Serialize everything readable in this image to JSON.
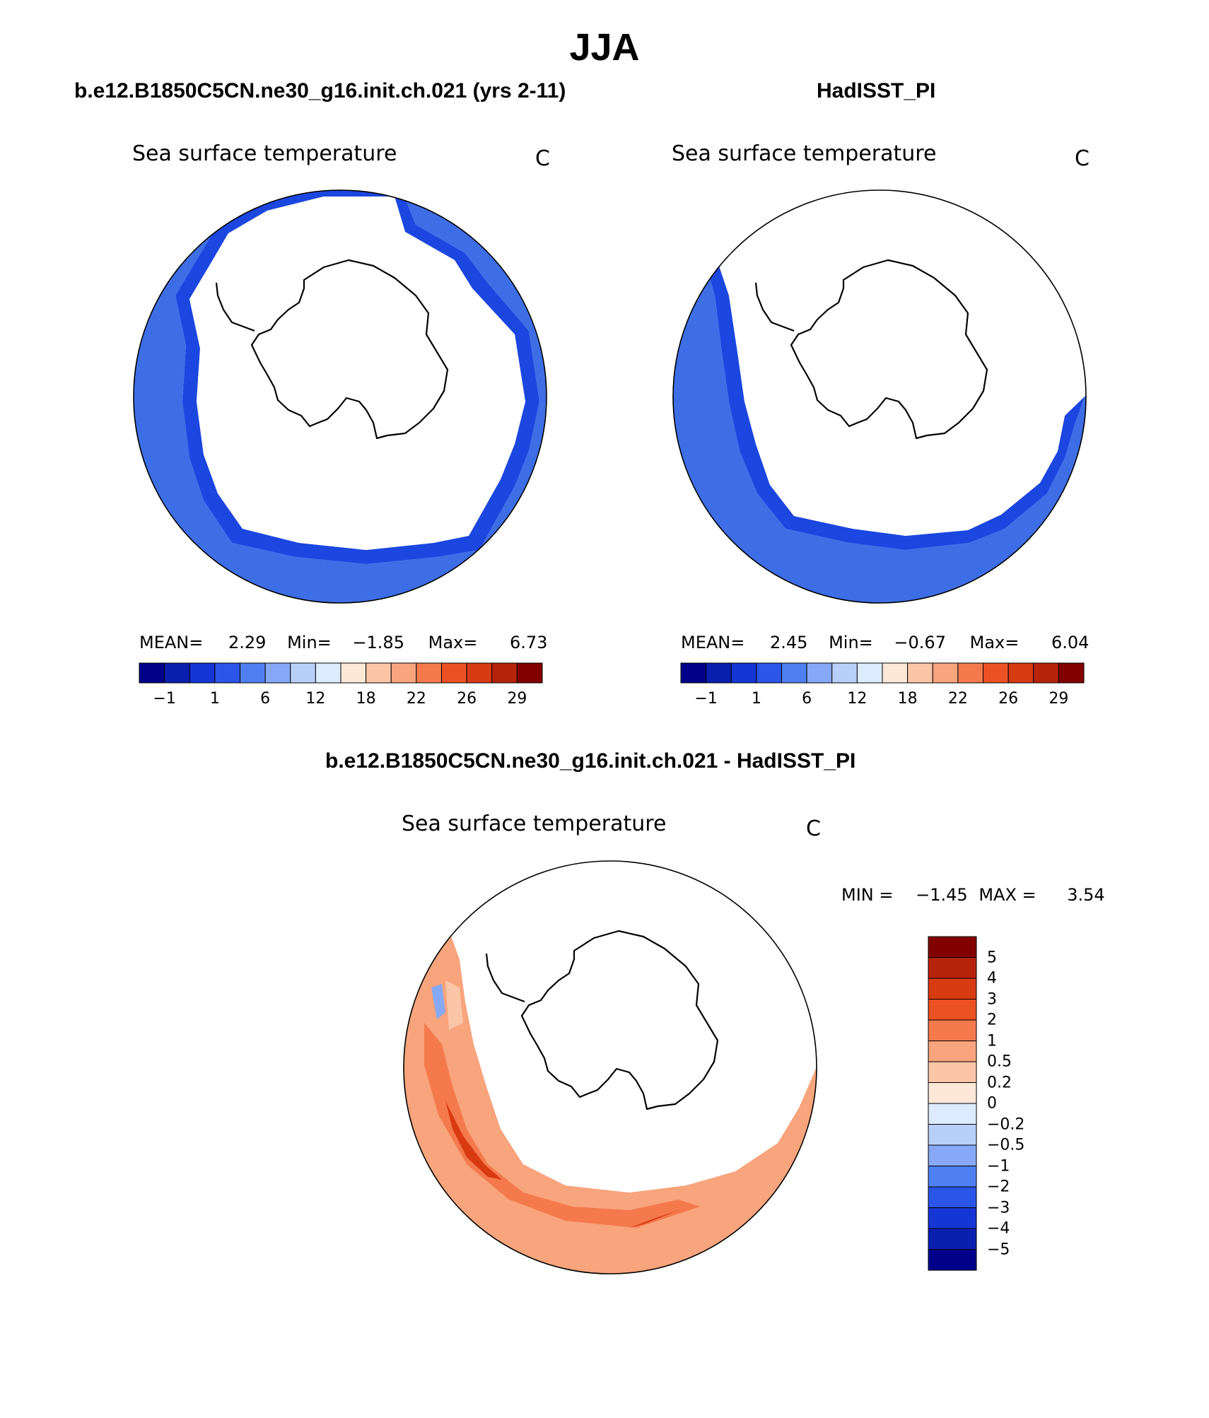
{
  "title": "JJA",
  "panels": [
    {
      "title": "b.e12.B1850C5CN.ne30_g16.init.ch.021 (yrs 2-11)",
      "variable": "Sea surface temperature",
      "units": "C",
      "stats": {
        "mean_label": "MEAN=",
        "mean": "2.29",
        "min_label": "Min=",
        "min": "−1.85",
        "max_label": "Max=",
        "max": "6.73"
      }
    },
    {
      "title": "HadISST_PI",
      "variable": "Sea surface temperature",
      "units": "C",
      "stats": {
        "mean_label": "MEAN=",
        "mean": "2.45",
        "min_label": "Min=",
        "min": "−0.67",
        "max_label": "Max=",
        "max": "6.04"
      }
    }
  ],
  "diff_panel": {
    "title": "b.e12.B1850C5CN.ne30_g16.init.ch.021 - HadISST_PI",
    "variable": "Sea surface temperature",
    "units": "C",
    "minmax": {
      "min_label": "MIN =",
      "min": "−1.45",
      "max_label": "MAX =",
      "max": "3.54"
    }
  },
  "colorbar": {
    "colors": [
      "#00008B",
      "#0a1fb0",
      "#1536d4",
      "#2a55e8",
      "#4f7ff0",
      "#86a8f6",
      "#b8cffa",
      "#dcebfd",
      "#fde8d8",
      "#fbc6a8",
      "#f8a47c",
      "#f47a4e",
      "#ec5124",
      "#d83a12",
      "#b7230a",
      "#830000"
    ],
    "tick_labels": [
      "−1",
      "1",
      "6",
      "12",
      "18",
      "22",
      "26",
      "29"
    ]
  },
  "diff_colorbar": {
    "colors": [
      "#00008B",
      "#0a1fb0",
      "#1536d4",
      "#2a55e8",
      "#4f7ff0",
      "#86a8f6",
      "#b8cffa",
      "#dcebfd",
      "#fde8d8",
      "#fbc6a8",
      "#f8a47c",
      "#f47a4e",
      "#ec5124",
      "#d83a12",
      "#b7230a",
      "#830000"
    ],
    "labels": [
      "5",
      "4",
      "3",
      "2",
      "1",
      "0.5",
      "0.2",
      "0",
      "−0.2",
      "−0.5",
      "−1",
      "−2",
      "−3",
      "−4",
      "−5"
    ]
  }
}
